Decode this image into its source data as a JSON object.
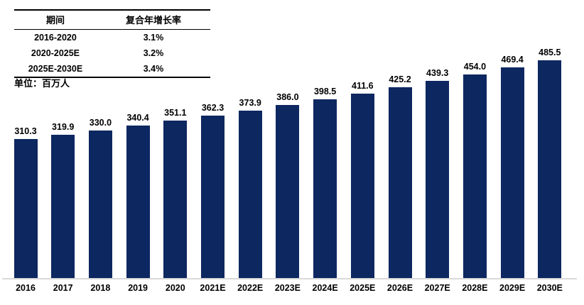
{
  "chart_data": {
    "type": "bar",
    "title": "",
    "unit_label": "单位：百万人",
    "categories": [
      "2016",
      "2017",
      "2018",
      "2019",
      "2020",
      "2021E",
      "2022E",
      "2023E",
      "2024E",
      "2025E",
      "2026E",
      "2027E",
      "2028E",
      "2029E",
      "2030E"
    ],
    "values": [
      310.3,
      319.9,
      330.0,
      340.4,
      351.1,
      362.3,
      373.9,
      386.0,
      398.5,
      411.6,
      425.2,
      439.3,
      454.0,
      469.4,
      485.5
    ],
    "value_label_decimals": 1,
    "ylim": [
      0,
      500
    ],
    "grid": false,
    "legend": "none",
    "bar_color": "#0d2760",
    "axis_line_color": "#d9d9d9",
    "cagr_table": {
      "headers": [
        "期间",
        "复合年增长率"
      ],
      "rows": [
        [
          "2016-2020",
          "3.1%"
        ],
        [
          "2020-2025E",
          "3.2%"
        ],
        [
          "2025E-2030E",
          "3.4%"
        ]
      ]
    }
  }
}
